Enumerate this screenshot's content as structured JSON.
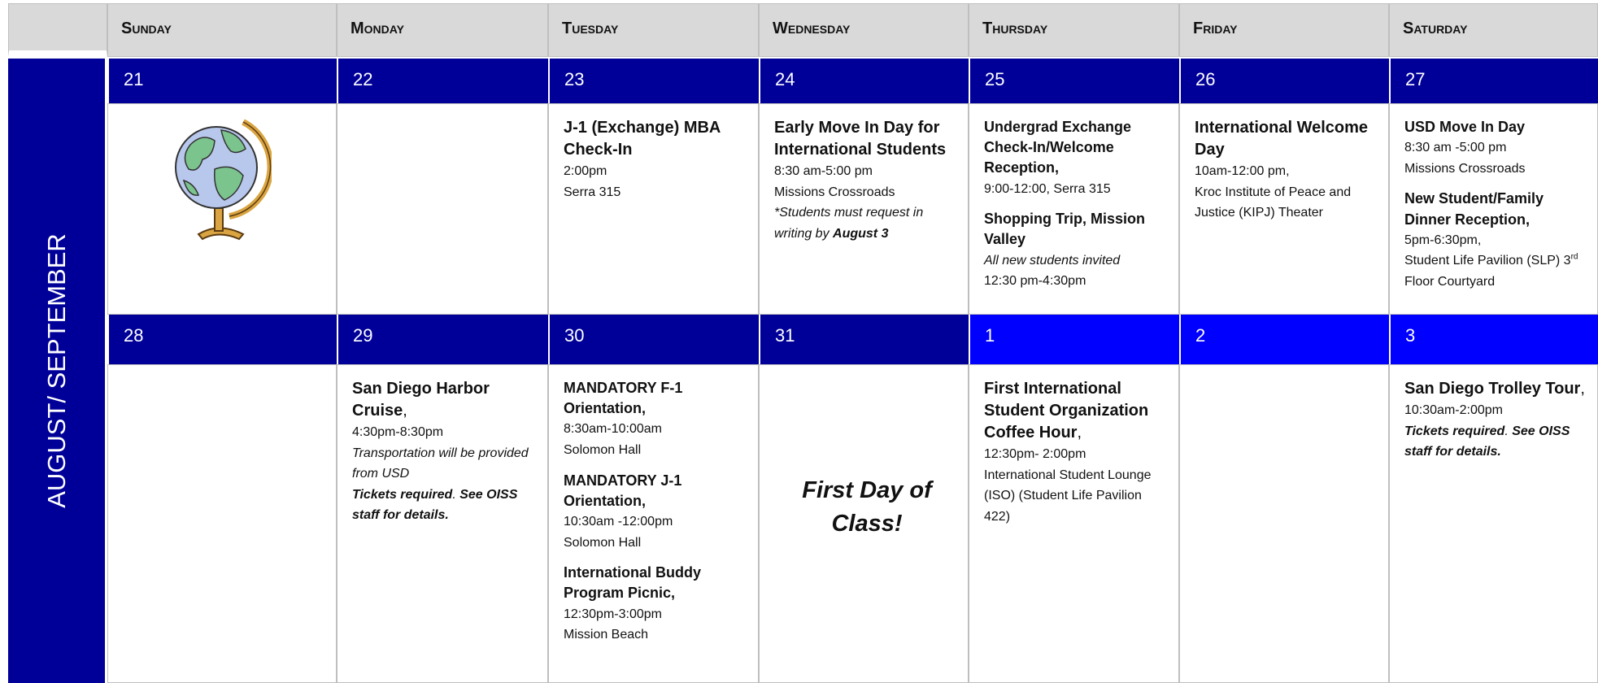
{
  "side_label": "AUGUST/ SEPTEMBER",
  "days": [
    "Sunday",
    "Monday",
    "Tuesday",
    "Wednesday",
    "Thursday",
    "Friday",
    "Saturday"
  ],
  "weeks": [
    {
      "dates": [
        {
          "label": "21",
          "color": "#000099"
        },
        {
          "label": "22",
          "color": "#000099"
        },
        {
          "label": "23",
          "color": "#000099"
        },
        {
          "label": "24",
          "color": "#000099"
        },
        {
          "label": "25",
          "color": "#000099"
        },
        {
          "label": "26",
          "color": "#000099"
        },
        {
          "label": "27",
          "color": "#000099"
        }
      ],
      "cells": [
        [],
        [],
        [
          {
            "style": "title",
            "parts": [
              {
                "text": "J-1 (Exchange) MBA Check-In"
              }
            ]
          },
          {
            "style": "text",
            "parts": [
              {
                "text": "2:00pm"
              }
            ]
          },
          {
            "style": "text",
            "parts": [
              {
                "text": "Serra 315"
              }
            ]
          }
        ],
        [
          {
            "style": "title",
            "parts": [
              {
                "text": "Early Move In Day for International Students"
              }
            ]
          },
          {
            "style": "text",
            "parts": [
              {
                "text": "8:30 am-5:00 pm"
              }
            ]
          },
          {
            "style": "text",
            "parts": [
              {
                "text": "Missions Crossroads"
              }
            ]
          },
          {
            "style": "italic",
            "parts": [
              {
                "text": "*Students must request in writing by "
              },
              {
                "text": "August 3",
                "style": "bi"
              }
            ]
          }
        ],
        [
          {
            "style": "sub",
            "parts": [
              {
                "text": "Undergrad Exchange Check-In/Welcome Reception,"
              }
            ]
          },
          {
            "style": "text",
            "parts": [
              {
                "text": "9:00-12:00, Serra 315"
              }
            ]
          },
          {
            "style": "sub",
            "parts": [
              {
                "text": "Shopping Trip, Mission  Valley"
              }
            ]
          },
          {
            "style": "italic",
            "parts": [
              {
                "text": "All new students invited"
              }
            ]
          },
          {
            "style": "text",
            "parts": [
              {
                "text": "12:30 pm-4:30pm"
              }
            ]
          }
        ],
        [
          {
            "style": "title",
            "parts": [
              {
                "text": "International Welcome Day"
              }
            ]
          },
          {
            "style": "text",
            "parts": [
              {
                "text": "10am-12:00 pm,"
              }
            ]
          },
          {
            "style": "text",
            "parts": [
              {
                "text": "Kroc Institute of Peace and Justice (KIPJ) Theater"
              }
            ]
          }
        ],
        [
          {
            "style": "sub",
            "parts": [
              {
                "text": "USD Move In Day"
              }
            ]
          },
          {
            "style": "text",
            "parts": [
              {
                "text": "8:30 am -5:00 pm"
              }
            ]
          },
          {
            "style": "text",
            "parts": [
              {
                "text": "Missions Crossroads"
              }
            ]
          },
          {
            "style": "sub",
            "parts": [
              {
                "text": "New Student/Family Dinner Reception,"
              }
            ]
          },
          {
            "style": "text",
            "parts": [
              {
                "text": "5pm-6:30pm,"
              }
            ]
          },
          {
            "style": "text",
            "parts": [
              {
                "text": "Student Life Pavilion (SLP) 3"
              },
              {
                "text": "rd",
                "style": "sup"
              },
              {
                "text": " Floor Courtyard"
              }
            ]
          }
        ]
      ]
    },
    {
      "dates": [
        {
          "label": "28",
          "color": "#000099"
        },
        {
          "label": "29",
          "color": "#000099"
        },
        {
          "label": "30",
          "color": "#000099"
        },
        {
          "label": "31",
          "color": "#000099"
        },
        {
          "label": "1",
          "color": "#0000ff"
        },
        {
          "label": "2",
          "color": "#0000ff"
        },
        {
          "label": "3",
          "color": "#0000ff"
        }
      ],
      "cells": [
        [],
        [
          {
            "style": "title",
            "parts": [
              {
                "text": "San Diego Harbor Cruise"
              },
              {
                "text": ",",
                "style": "n"
              }
            ]
          },
          {
            "style": "text",
            "parts": [
              {
                "text": "4:30pm-8:30pm"
              }
            ]
          },
          {
            "style": "italic",
            "parts": [
              {
                "text": "Transportation will be provided from USD"
              }
            ]
          },
          {
            "style": "italic",
            "parts": [
              {
                "text": "Tickets required",
                "style": "bi"
              },
              {
                "text": "."
              },
              {
                "text": " See OISS staff for details.",
                "style": "bi"
              }
            ]
          }
        ],
        [
          {
            "style": "sub",
            "parts": [
              {
                "text": "MANDATORY F-1 Orientation,"
              }
            ]
          },
          {
            "style": "text",
            "parts": [
              {
                "text": "8:30am-10:00am"
              }
            ]
          },
          {
            "style": "text",
            "parts": [
              {
                "text": "Solomon Hall"
              }
            ]
          },
          {
            "style": "sub",
            "parts": [
              {
                "text": "MANDATORY J-1 Orientation,"
              }
            ]
          },
          {
            "style": "text",
            "parts": [
              {
                "text": "10:30am -12:00pm"
              }
            ]
          },
          {
            "style": "text",
            "parts": [
              {
                "text": "Solomon Hall"
              }
            ]
          },
          {
            "style": "sub",
            "parts": [
              {
                "text": "International Buddy Program Picnic,"
              }
            ]
          },
          {
            "style": "text",
            "parts": [
              {
                "text": "12:30pm-3:00pm"
              }
            ]
          },
          {
            "style": "text",
            "parts": [
              {
                "text": "Mission Beach"
              }
            ]
          }
        ],
        [
          {
            "style": "big",
            "parts": [
              {
                "text": "First Day of Class!"
              }
            ]
          }
        ],
        [
          {
            "style": "title",
            "parts": [
              {
                "text": "First International Student Organization Coffee Hour"
              },
              {
                "text": ",",
                "style": "n"
              }
            ]
          },
          {
            "style": "text",
            "parts": [
              {
                "text": "12:30pm- 2:00pm"
              }
            ]
          },
          {
            "style": "text",
            "parts": [
              {
                "text": "International Student Lounge (ISO) (Student Life Pavilion 422)"
              }
            ]
          }
        ],
        [],
        [
          {
            "style": "title",
            "parts": [
              {
                "text": "San Diego Trolley Tour"
              },
              {
                "text": ",",
                "style": "n"
              }
            ]
          },
          {
            "style": "text",
            "parts": [
              {
                "text": "10:30am-2:00pm"
              }
            ]
          },
          {
            "style": "italic",
            "parts": [
              {
                "text": "Tickets required",
                "style": "bi"
              },
              {
                "text": "."
              },
              {
                "text": " See OISS staff for details.",
                "style": "bi"
              }
            ]
          }
        ]
      ]
    }
  ]
}
